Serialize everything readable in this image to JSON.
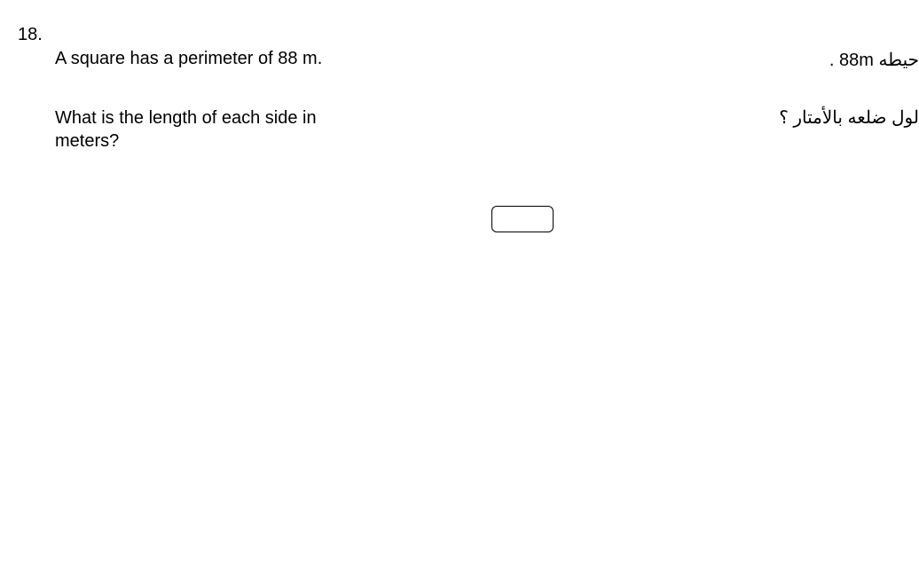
{
  "question_number": "18.",
  "english": {
    "line1": "A square has a perimeter of 88 m.",
    "line2": "What is the length of each side in meters?"
  },
  "arabic": {
    "line1": "حيطه 88m .",
    "line2": "لول ضلعه بالأمتار ؟"
  },
  "answer_input": {
    "value": "",
    "border_color": "#000000",
    "background": "#ffffff",
    "border_radius": 6,
    "width": 70,
    "height": 30
  },
  "colors": {
    "text": "#000000",
    "background": "#ffffff"
  },
  "font_size_pt": 15
}
